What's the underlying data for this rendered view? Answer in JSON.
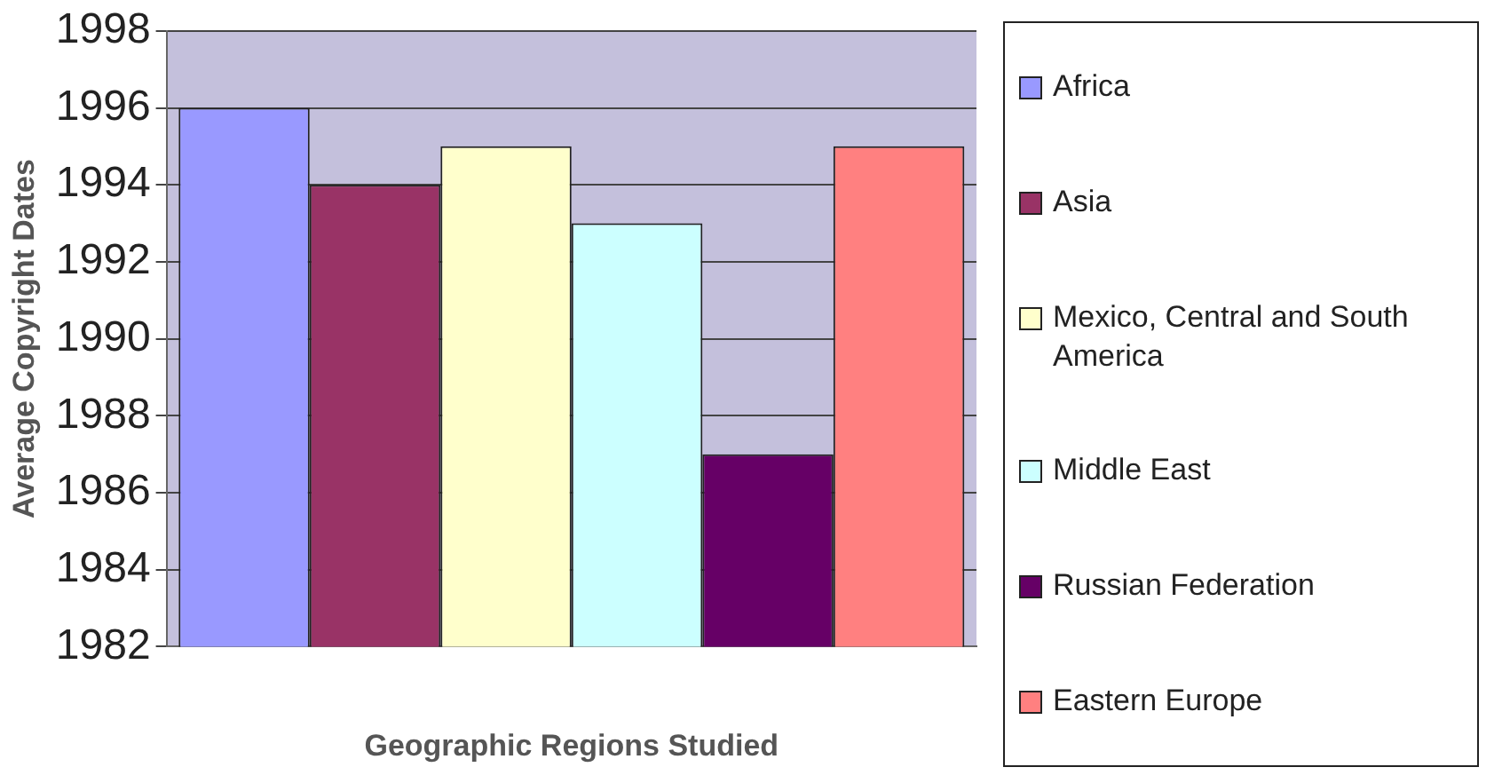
{
  "chart_data": {
    "type": "bar",
    "xlabel": "Geographic Regions Studied",
    "ylabel": "Average Copyright Dates",
    "categories": [
      null
    ],
    "series": [
      {
        "name": "Africa",
        "color": "#9999ff",
        "values": [
          1996
        ]
      },
      {
        "name": "Asia",
        "color": "#993366",
        "values": [
          1994
        ]
      },
      {
        "name": "Mexico, Central and South America",
        "color": "#ffffcc",
        "values": [
          1995
        ]
      },
      {
        "name": "Middle East",
        "color": "#ccffff",
        "values": [
          1993
        ]
      },
      {
        "name": "Russian Federation",
        "color": "#660066",
        "values": [
          1987
        ]
      },
      {
        "name": "Eastern Europe",
        "color": "#ff8080",
        "values": [
          1995
        ]
      }
    ],
    "ylim": [
      1982,
      1998
    ],
    "yticks": [
      1982,
      1984,
      1986,
      1988,
      1990,
      1992,
      1994,
      1996,
      1998
    ],
    "grid": "y",
    "legend": "right"
  }
}
